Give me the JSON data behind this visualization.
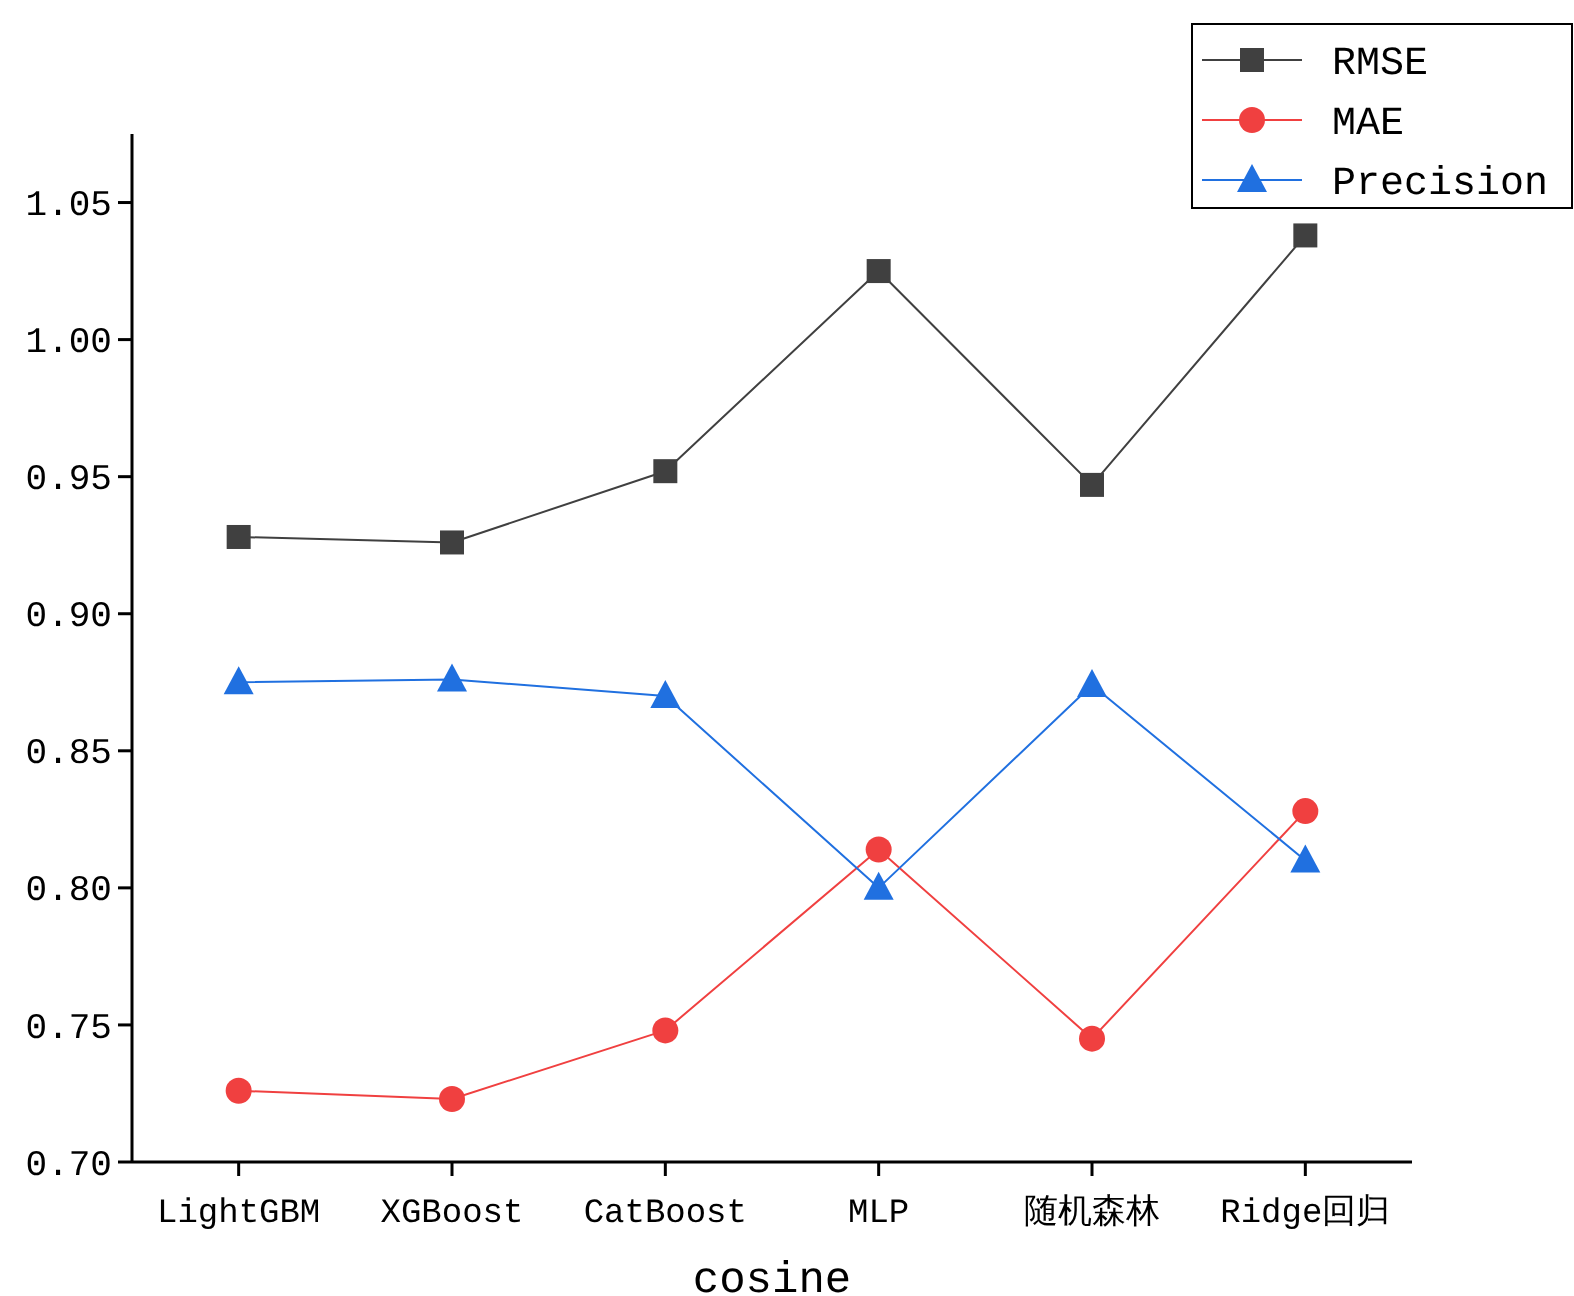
{
  "chart_data": {
    "type": "line",
    "xlabel": "cosine",
    "categories": [
      "LightGBM",
      "XGBoost",
      "CatBoost",
      "MLP",
      "随机森林",
      "Ridge回归"
    ],
    "series": [
      {
        "name": "RMSE",
        "color": "#404040",
        "marker": "square",
        "values": [
          0.928,
          0.926,
          0.952,
          1.025,
          0.947,
          1.038
        ]
      },
      {
        "name": "MAE",
        "color": "#f04040",
        "marker": "circle",
        "values": [
          0.726,
          0.723,
          0.748,
          0.814,
          0.745,
          0.828
        ]
      },
      {
        "name": "Precision",
        "color": "#2070e0",
        "marker": "triangle",
        "values": [
          0.875,
          0.876,
          0.87,
          0.8,
          0.874,
          0.81
        ]
      }
    ],
    "ylim": [
      0.7,
      1.075
    ],
    "yticks": [
      {
        "value": 0.7,
        "label": "0.70"
      },
      {
        "value": 0.75,
        "label": "0.75"
      },
      {
        "value": 0.8,
        "label": "0.80"
      },
      {
        "value": 0.85,
        "label": "0.85"
      },
      {
        "value": 0.9,
        "label": "0.90"
      },
      {
        "value": 0.95,
        "label": "0.95"
      },
      {
        "value": 1.0,
        "label": "1.00"
      },
      {
        "value": 1.05,
        "label": "1.05"
      }
    ],
    "grid": false,
    "legend": "top right",
    "line_style": "solid"
  }
}
